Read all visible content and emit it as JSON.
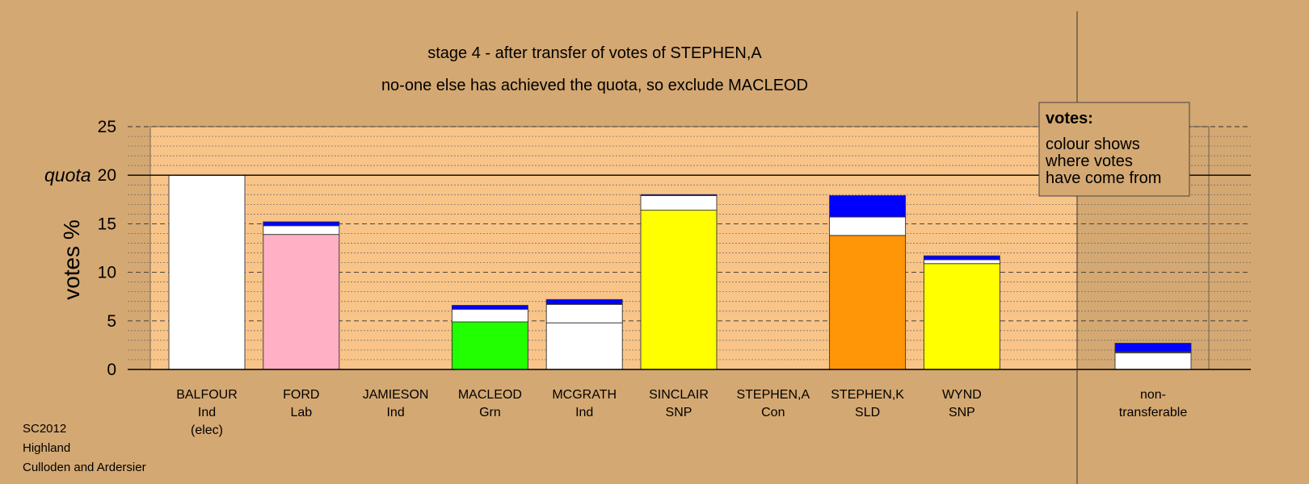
{
  "chart_data": {
    "type": "bar",
    "stacked": true,
    "title": "stage 4 - after transfer of votes of STEPHEN,A",
    "subtitle": "no-one else has achieved the quota, so exclude MACLEOD",
    "ylabel": "votes %",
    "ylim": [
      0,
      25
    ],
    "yticks": [
      "0",
      "5",
      "10",
      "15",
      "20",
      "25"
    ],
    "quota_label": "quota",
    "quota": 20,
    "grid": true,
    "colors": {
      "background": "#D4A872",
      "plot": "#F8C488",
      "shade": "#D4A872",
      "Ind": "#FFFFFF",
      "Lab": "#FFB0C4",
      "Grn": "#22FF00",
      "SNP": "#FFFF00",
      "SLD": "#FF9608",
      "Con": "#0000FF"
    },
    "categories": [
      {
        "name": "BALFOUR",
        "party": "Ind",
        "note": "(elec)"
      },
      {
        "name": "FORD",
        "party": "Lab"
      },
      {
        "name": "JAMIESON",
        "party": "Ind"
      },
      {
        "name": "MACLEOD",
        "party": "Grn"
      },
      {
        "name": "MCGRATH",
        "party": "Ind"
      },
      {
        "name": "SINCLAIR",
        "party": "SNP"
      },
      {
        "name": "STEPHEN,A",
        "party": "Con"
      },
      {
        "name": "STEPHEN,K",
        "party": "SLD"
      },
      {
        "name": "WYND",
        "party": "SNP"
      },
      {
        "name": "non-",
        "party": "transferable"
      }
    ],
    "stacks": [
      [
        {
          "from": "Ind",
          "value": 20.0
        }
      ],
      [
        {
          "from": "Lab",
          "value": 13.9
        },
        {
          "from": "Ind",
          "value": 0.9
        },
        {
          "from": "Con",
          "value": 0.4
        }
      ],
      [],
      [
        {
          "from": "Grn",
          "value": 4.9
        },
        {
          "from": "Ind",
          "value": 1.3
        },
        {
          "from": "Con",
          "value": 0.4
        }
      ],
      [
        {
          "from": "Ind",
          "value": 4.8
        },
        {
          "from": "Ind",
          "value": 1.9
        },
        {
          "from": "Con",
          "value": 0.5
        }
      ],
      [
        {
          "from": "SNP",
          "value": 16.4
        },
        {
          "from": "Ind",
          "value": 1.5
        },
        {
          "from": "Con",
          "value": 0.1
        }
      ],
      [],
      [
        {
          "from": "SLD",
          "value": 13.8
        },
        {
          "from": "Ind",
          "value": 1.9
        },
        {
          "from": "Con",
          "value": 2.2
        }
      ],
      [
        {
          "from": "SNP",
          "value": 10.9
        },
        {
          "from": "Ind",
          "value": 0.4
        },
        {
          "from": "Con",
          "value": 0.4
        }
      ],
      [
        {
          "from": "Ind",
          "value": 1.7
        },
        {
          "from": "Ind",
          "value": 0.1
        },
        {
          "from": "Con",
          "value": 0.9
        }
      ]
    ],
    "legend": {
      "position": "top-right",
      "title": "votes:",
      "lines": [
        "colour shows",
        "where votes",
        "have come from"
      ]
    }
  },
  "footer": {
    "lines": [
      "SC2012",
      "Highland",
      "Culloden and Ardersier"
    ]
  }
}
